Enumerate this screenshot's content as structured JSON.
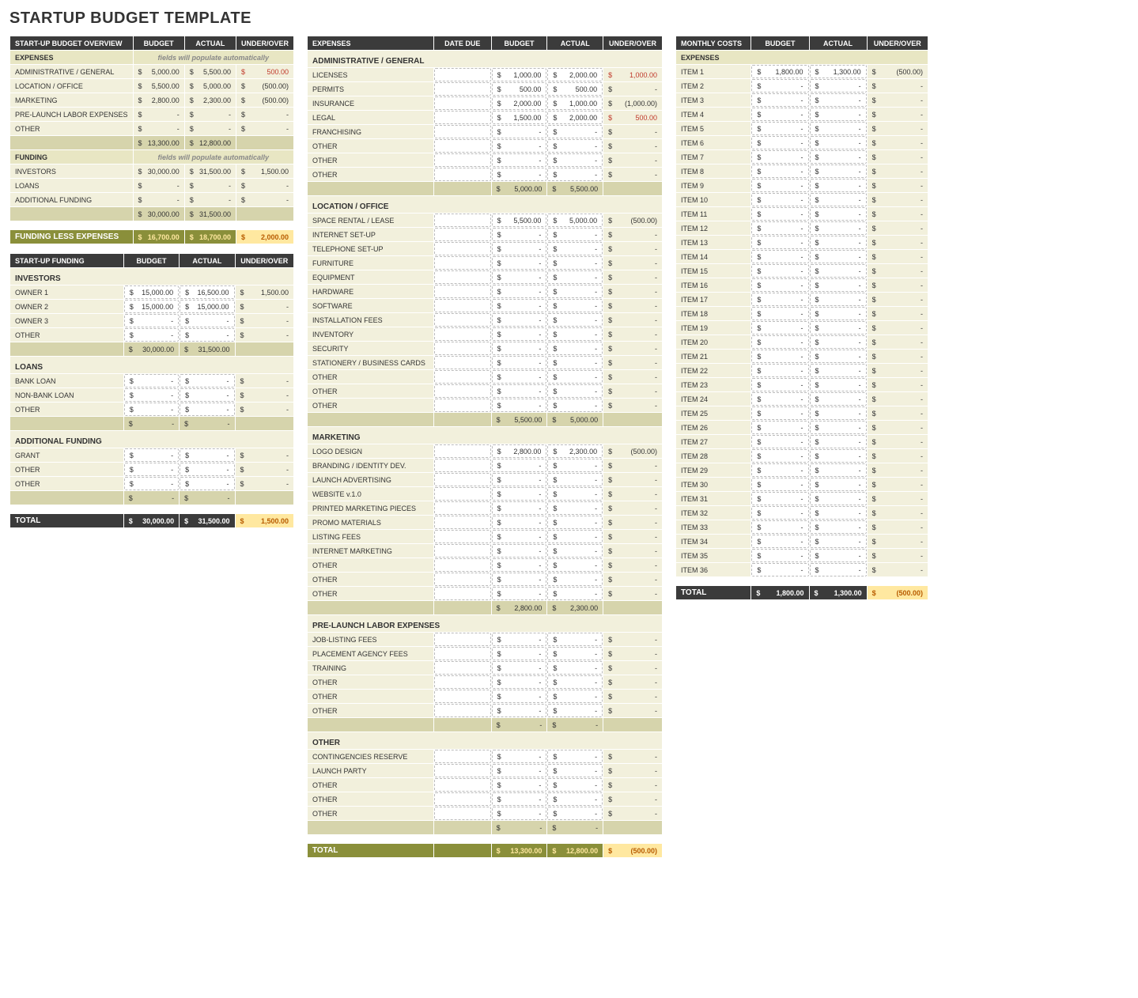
{
  "title": "STARTUP BUDGET TEMPLATE",
  "colHdrs": {
    "budget": "BUDGET",
    "actual": "ACTUAL",
    "uo": "UNDER/OVER",
    "dateDue": "DATE DUE"
  },
  "notes": {
    "auto": "fields will populate automatically"
  },
  "overview": {
    "header": "START-UP BUDGET OVERVIEW",
    "expenses": {
      "header": "EXPENSES",
      "rows": [
        {
          "l": "ADMINISTRATIVE / GENERAL",
          "b": "5,000.00",
          "a": "5,500.00",
          "u": "500.00",
          "red": true
        },
        {
          "l": "LOCATION / OFFICE",
          "b": "5,500.00",
          "a": "5,000.00",
          "u": "(500.00)"
        },
        {
          "l": "MARKETING",
          "b": "2,800.00",
          "a": "2,300.00",
          "u": "(500.00)"
        },
        {
          "l": "PRE-LAUNCH LABOR EXPENSES",
          "b": "-",
          "a": "-",
          "u": "-"
        },
        {
          "l": "OTHER",
          "b": "-",
          "a": "-",
          "u": "-"
        }
      ],
      "total": {
        "b": "13,300.00",
        "a": "12,800.00"
      }
    },
    "funding": {
      "header": "FUNDING",
      "rows": [
        {
          "l": "INVESTORS",
          "b": "30,000.00",
          "a": "31,500.00",
          "u": "1,500.00"
        },
        {
          "l": "LOANS",
          "b": "-",
          "a": "-",
          "u": "-"
        },
        {
          "l": "ADDITIONAL FUNDING",
          "b": "-",
          "a": "-",
          "u": "-"
        }
      ],
      "total": {
        "b": "30,000.00",
        "a": "31,500.00"
      }
    },
    "fle": {
      "l": "FUNDING LESS EXPENSES",
      "b": "16,700.00",
      "a": "18,700.00",
      "u": "2,000.00"
    }
  },
  "funding": {
    "header": "START-UP FUNDING",
    "groups": [
      {
        "name": "INVESTORS",
        "rows": [
          {
            "l": "OWNER 1",
            "b": "15,000.00",
            "a": "16,500.00",
            "u": "1,500.00"
          },
          {
            "l": "OWNER 2",
            "b": "15,000.00",
            "a": "15,000.00",
            "u": "-"
          },
          {
            "l": "OWNER 3",
            "b": "-",
            "a": "-",
            "u": "-"
          },
          {
            "l": "OTHER",
            "b": "-",
            "a": "-",
            "u": "-"
          }
        ],
        "total": {
          "b": "30,000.00",
          "a": "31,500.00"
        }
      },
      {
        "name": "LOANS",
        "rows": [
          {
            "l": "BANK LOAN",
            "b": "-",
            "a": "-",
            "u": "-"
          },
          {
            "l": "NON-BANK LOAN",
            "b": "-",
            "a": "-",
            "u": "-"
          },
          {
            "l": "OTHER",
            "b": "-",
            "a": "-",
            "u": "-"
          }
        ],
        "total": {
          "b": "-",
          "a": "-"
        }
      },
      {
        "name": "ADDITIONAL FUNDING",
        "rows": [
          {
            "l": "GRANT",
            "b": "-",
            "a": "-",
            "u": "-"
          },
          {
            "l": "OTHER",
            "b": "-",
            "a": "-",
            "u": "-"
          },
          {
            "l": "OTHER",
            "b": "-",
            "a": "-",
            "u": "-"
          }
        ],
        "total": {
          "b": "-",
          "a": "-"
        }
      }
    ],
    "grand": {
      "l": "TOTAL",
      "b": "30,000.00",
      "a": "31,500.00",
      "u": "1,500.00"
    }
  },
  "expenses": {
    "header": "EXPENSES",
    "groups": [
      {
        "name": "ADMINISTRATIVE / GENERAL",
        "rows": [
          {
            "l": "LICENSES",
            "b": "1,000.00",
            "a": "2,000.00",
            "u": "1,000.00",
            "red": true
          },
          {
            "l": "PERMITS",
            "b": "500.00",
            "a": "500.00",
            "u": "-"
          },
          {
            "l": "INSURANCE",
            "b": "2,000.00",
            "a": "1,000.00",
            "u": "(1,000.00)"
          },
          {
            "l": "LEGAL",
            "b": "1,500.00",
            "a": "2,000.00",
            "u": "500.00",
            "red": true
          },
          {
            "l": "FRANCHISING",
            "b": "-",
            "a": "-",
            "u": "-"
          },
          {
            "l": "OTHER",
            "b": "-",
            "a": "-",
            "u": "-"
          },
          {
            "l": "OTHER",
            "b": "-",
            "a": "-",
            "u": "-"
          },
          {
            "l": "OTHER",
            "b": "-",
            "a": "-",
            "u": "-"
          }
        ],
        "total": {
          "b": "5,000.00",
          "a": "5,500.00"
        }
      },
      {
        "name": "LOCATION / OFFICE",
        "rows": [
          {
            "l": "SPACE RENTAL / LEASE",
            "b": "5,500.00",
            "a": "5,000.00",
            "u": "(500.00)"
          },
          {
            "l": "INTERNET SET-UP",
            "b": "-",
            "a": "-",
            "u": "-"
          },
          {
            "l": "TELEPHONE SET-UP",
            "b": "-",
            "a": "-",
            "u": "-"
          },
          {
            "l": "FURNITURE",
            "b": "-",
            "a": "-",
            "u": "-"
          },
          {
            "l": "EQUIPMENT",
            "b": "-",
            "a": "-",
            "u": "-"
          },
          {
            "l": "HARDWARE",
            "b": "-",
            "a": "-",
            "u": "-"
          },
          {
            "l": "SOFTWARE",
            "b": "-",
            "a": "-",
            "u": "-"
          },
          {
            "l": "INSTALLATION FEES",
            "b": "-",
            "a": "-",
            "u": "-"
          },
          {
            "l": "INVENTORY",
            "b": "-",
            "a": "-",
            "u": "-"
          },
          {
            "l": "SECURITY",
            "b": "-",
            "a": "-",
            "u": "-"
          },
          {
            "l": "STATIONERY / BUSINESS CARDS",
            "b": "-",
            "a": "-",
            "u": "-"
          },
          {
            "l": "OTHER",
            "b": "-",
            "a": "-",
            "u": "-"
          },
          {
            "l": "OTHER",
            "b": "-",
            "a": "-",
            "u": "-"
          },
          {
            "l": "OTHER",
            "b": "-",
            "a": "-",
            "u": "-"
          }
        ],
        "total": {
          "b": "5,500.00",
          "a": "5,000.00"
        }
      },
      {
        "name": "MARKETING",
        "rows": [
          {
            "l": "LOGO DESIGN",
            "b": "2,800.00",
            "a": "2,300.00",
            "u": "(500.00)"
          },
          {
            "l": "BRANDING / IDENTITY DEV.",
            "b": "-",
            "a": "-",
            "u": "-"
          },
          {
            "l": "LAUNCH ADVERTISING",
            "b": "-",
            "a": "-",
            "u": "-"
          },
          {
            "l": "WEBSITE v.1.0",
            "b": "-",
            "a": "-",
            "u": "-"
          },
          {
            "l": "PRINTED MARKETING PIECES",
            "b": "-",
            "a": "-",
            "u": "-"
          },
          {
            "l": "PROMO MATERIALS",
            "b": "-",
            "a": "-",
            "u": "-"
          },
          {
            "l": "LISTING FEES",
            "b": "-",
            "a": "-",
            "u": "-"
          },
          {
            "l": "INTERNET MARKETING",
            "b": "-",
            "a": "-",
            "u": "-"
          },
          {
            "l": "OTHER",
            "b": "-",
            "a": "-",
            "u": "-"
          },
          {
            "l": "OTHER",
            "b": "-",
            "a": "-",
            "u": "-"
          },
          {
            "l": "OTHER",
            "b": "-",
            "a": "-",
            "u": "-"
          }
        ],
        "total": {
          "b": "2,800.00",
          "a": "2,300.00"
        }
      },
      {
        "name": "PRE-LAUNCH LABOR EXPENSES",
        "rows": [
          {
            "l": "JOB-LISTING FEES",
            "b": "-",
            "a": "-",
            "u": "-"
          },
          {
            "l": "PLACEMENT AGENCY FEES",
            "b": "-",
            "a": "-",
            "u": "-"
          },
          {
            "l": "TRAINING",
            "b": "-",
            "a": "-",
            "u": "-"
          },
          {
            "l": "OTHER",
            "b": "-",
            "a": "-",
            "u": "-"
          },
          {
            "l": "OTHER",
            "b": "-",
            "a": "-",
            "u": "-"
          },
          {
            "l": "OTHER",
            "b": "-",
            "a": "-",
            "u": "-"
          }
        ],
        "total": {
          "b": "-",
          "a": "-"
        }
      },
      {
        "name": "OTHER",
        "rows": [
          {
            "l": "CONTINGENCIES RESERVE",
            "b": "-",
            "a": "-",
            "u": "-"
          },
          {
            "l": "LAUNCH PARTY",
            "b": "-",
            "a": "-",
            "u": "-"
          },
          {
            "l": "OTHER",
            "b": "-",
            "a": "-",
            "u": "-"
          },
          {
            "l": "OTHER",
            "b": "-",
            "a": "-",
            "u": "-"
          },
          {
            "l": "OTHER",
            "b": "-",
            "a": "-",
            "u": "-"
          }
        ],
        "total": {
          "b": "-",
          "a": "-"
        }
      }
    ],
    "grand": {
      "l": "TOTAL",
      "b": "13,300.00",
      "a": "12,800.00",
      "u": "(500.00)"
    }
  },
  "monthly": {
    "header": "MONTHLY COSTS",
    "sub": "EXPENSES",
    "rows": [
      {
        "l": "ITEM 1",
        "b": "1,800.00",
        "a": "1,300.00",
        "u": "(500.00)"
      },
      {
        "l": "ITEM 2",
        "b": "-",
        "a": "-",
        "u": "-"
      },
      {
        "l": "ITEM 3",
        "b": "-",
        "a": "-",
        "u": "-"
      },
      {
        "l": "ITEM 4",
        "b": "-",
        "a": "-",
        "u": "-"
      },
      {
        "l": "ITEM 5",
        "b": "-",
        "a": "-",
        "u": "-"
      },
      {
        "l": "ITEM 6",
        "b": "-",
        "a": "-",
        "u": "-"
      },
      {
        "l": "ITEM 7",
        "b": "-",
        "a": "-",
        "u": "-"
      },
      {
        "l": "ITEM 8",
        "b": "-",
        "a": "-",
        "u": "-"
      },
      {
        "l": "ITEM 9",
        "b": "-",
        "a": "-",
        "u": "-"
      },
      {
        "l": "ITEM 10",
        "b": "-",
        "a": "-",
        "u": "-"
      },
      {
        "l": "ITEM 11",
        "b": "-",
        "a": "-",
        "u": "-"
      },
      {
        "l": "ITEM 12",
        "b": "-",
        "a": "-",
        "u": "-"
      },
      {
        "l": "ITEM 13",
        "b": "-",
        "a": "-",
        "u": "-"
      },
      {
        "l": "ITEM 14",
        "b": "-",
        "a": "-",
        "u": "-"
      },
      {
        "l": "ITEM 15",
        "b": "-",
        "a": "-",
        "u": "-"
      },
      {
        "l": "ITEM 16",
        "b": "-",
        "a": "-",
        "u": "-"
      },
      {
        "l": "ITEM 17",
        "b": "-",
        "a": "-",
        "u": "-"
      },
      {
        "l": "ITEM 18",
        "b": "-",
        "a": "-",
        "u": "-"
      },
      {
        "l": "ITEM 19",
        "b": "-",
        "a": "-",
        "u": "-"
      },
      {
        "l": "ITEM 20",
        "b": "-",
        "a": "-",
        "u": "-"
      },
      {
        "l": "ITEM 21",
        "b": "-",
        "a": "-",
        "u": "-"
      },
      {
        "l": "ITEM 22",
        "b": "-",
        "a": "-",
        "u": "-"
      },
      {
        "l": "ITEM 23",
        "b": "-",
        "a": "-",
        "u": "-"
      },
      {
        "l": "ITEM 24",
        "b": "-",
        "a": "-",
        "u": "-"
      },
      {
        "l": "ITEM 25",
        "b": "-",
        "a": "-",
        "u": "-"
      },
      {
        "l": "ITEM 26",
        "b": "-",
        "a": "-",
        "u": "-"
      },
      {
        "l": "ITEM 27",
        "b": "-",
        "a": "-",
        "u": "-"
      },
      {
        "l": "ITEM 28",
        "b": "-",
        "a": "-",
        "u": "-"
      },
      {
        "l": "ITEM 29",
        "b": "-",
        "a": "-",
        "u": "-"
      },
      {
        "l": "ITEM 30",
        "b": "-",
        "a": "-",
        "u": "-"
      },
      {
        "l": "ITEM 31",
        "b": "-",
        "a": "-",
        "u": "-"
      },
      {
        "l": "ITEM 32",
        "b": "-",
        "a": "-",
        "u": "-"
      },
      {
        "l": "ITEM 33",
        "b": "-",
        "a": "-",
        "u": "-"
      },
      {
        "l": "ITEM 34",
        "b": "-",
        "a": "-",
        "u": "-"
      },
      {
        "l": "ITEM 35",
        "b": "-",
        "a": "-",
        "u": "-"
      },
      {
        "l": "ITEM 36",
        "b": "-",
        "a": "-",
        "u": "-"
      }
    ],
    "grand": {
      "l": "TOTAL",
      "b": "1,800.00",
      "a": "1,300.00",
      "u": "(500.00)"
    }
  }
}
